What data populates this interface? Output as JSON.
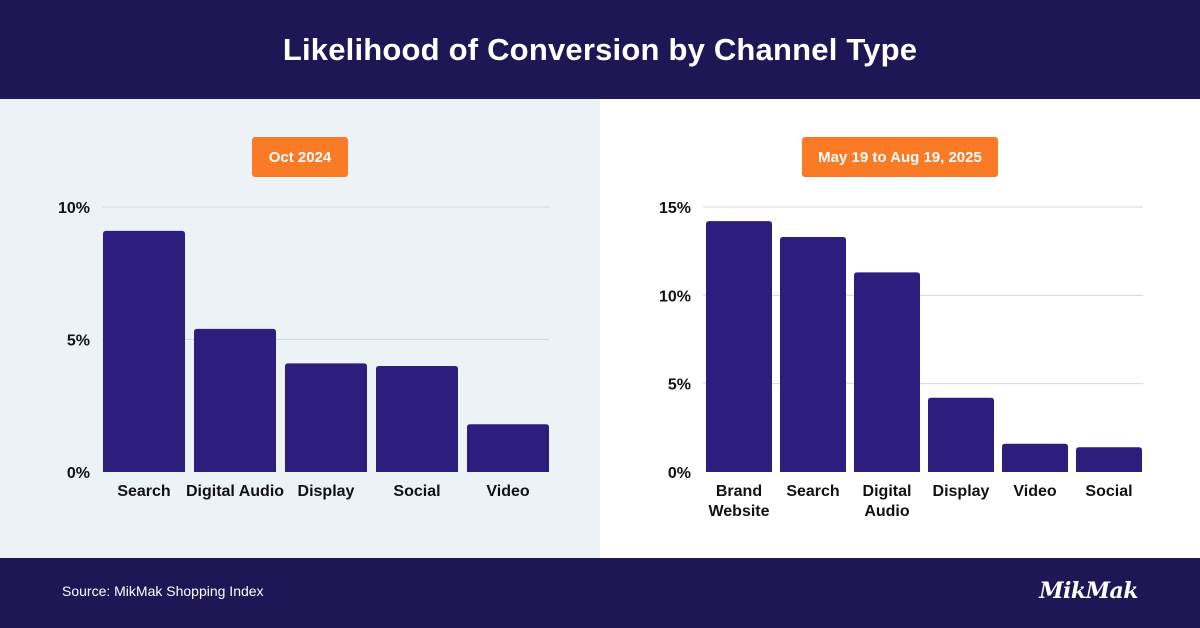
{
  "title": "Likelihood of Conversion by Channel Type",
  "footer": {
    "source": "Source: MikMak Shopping Index",
    "logo": "MikMak"
  },
  "colors": {
    "header_bg": "#1f1656",
    "bar": "#2d1d7c",
    "badge": "#fb7a25",
    "left_panel_bg": "#edf2f7"
  },
  "chart_data": [
    {
      "type": "bar",
      "badge": "Oct 2024",
      "categories": [
        "Search",
        "Digital Audio",
        "Display",
        "Social",
        "Video"
      ],
      "values": [
        9.1,
        5.4,
        4.1,
        4.0,
        1.8
      ],
      "yticks": [
        "0%",
        "5%",
        "10%"
      ],
      "ytick_values": [
        0,
        5,
        10
      ],
      "ylim": [
        0,
        10
      ],
      "grid": true
    },
    {
      "type": "bar",
      "badge": "May 19 to Aug 19, 2025",
      "categories": [
        "Brand Website",
        "Search",
        "Digital Audio",
        "Display",
        "Video",
        "Social"
      ],
      "values": [
        14.2,
        13.3,
        11.3,
        4.2,
        1.6,
        1.4
      ],
      "yticks": [
        "0%",
        "5%",
        "10%",
        "15%"
      ],
      "ytick_values": [
        0,
        5,
        10,
        15
      ],
      "ylim": [
        0,
        15
      ],
      "grid": true
    }
  ]
}
